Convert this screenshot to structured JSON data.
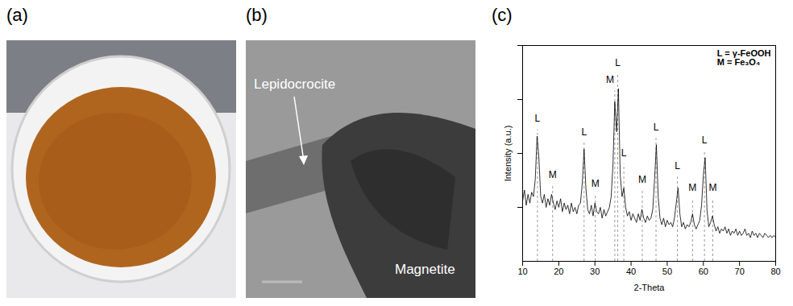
{
  "panels": [
    {
      "label": "(a)"
    },
    {
      "label": "(b)",
      "annotations": [
        "Lepidocrocite",
        "Magnetite"
      ]
    },
    {
      "label": "(c)"
    }
  ],
  "chart_data": {
    "type": "line",
    "x_label": "2-Theta",
    "y_label": "Intensity (a.u.)",
    "xlim": [
      10,
      80
    ],
    "xticks": [
      10,
      20,
      30,
      40,
      50,
      60,
      70,
      80
    ],
    "ylim": [
      0,
      100
    ],
    "yticks": [
      25,
      50,
      75,
      100
    ],
    "tick_labels": "x",
    "color": "#000000",
    "x": [
      10,
      10.5,
      11,
      11.5,
      12,
      12.5,
      13,
      13.5,
      14,
      14.5,
      15,
      15.5,
      16,
      16.5,
      17,
      17.5,
      18,
      18.5,
      19,
      19.5,
      20,
      20.5,
      21,
      21.5,
      22,
      22.5,
      23,
      23.5,
      24,
      24.5,
      25,
      25.5,
      26,
      26.5,
      27,
      27.5,
      28,
      28.5,
      29,
      29.5,
      30,
      30.5,
      31,
      31.5,
      32,
      32.5,
      33,
      33.5,
      34,
      34.5,
      35,
      35.5,
      36,
      36.5,
      37,
      37.5,
      38,
      38.5,
      39,
      39.5,
      40,
      40.5,
      41,
      41.5,
      42,
      42.5,
      43,
      43.5,
      44,
      44.5,
      45,
      45.5,
      46,
      46.5,
      47,
      47.5,
      48,
      48.5,
      49,
      49.5,
      50,
      50.5,
      51,
      51.5,
      52,
      52.5,
      53,
      53.5,
      54,
      54.5,
      55,
      55.5,
      56,
      56.5,
      57,
      57.5,
      58,
      58.5,
      59,
      59.5,
      60,
      60.5,
      61,
      61.5,
      62,
      62.5,
      63,
      63.5,
      64,
      64.5,
      65,
      65.5,
      66,
      66.5,
      67,
      67.5,
      68,
      68.5,
      69,
      69.5,
      70,
      70.5,
      71,
      71.5,
      72,
      72.5,
      73,
      73.5,
      74,
      74.5,
      75,
      75.5,
      76,
      76.5,
      77,
      77.5,
      78,
      78.5,
      79,
      79.5,
      80
    ],
    "values": [
      28,
      33,
      26,
      31,
      27,
      32,
      30,
      38,
      58,
      48,
      30,
      27,
      31,
      25,
      29,
      26,
      31,
      27,
      24,
      28,
      25,
      29,
      23,
      27,
      24,
      26,
      22,
      27,
      23,
      25,
      22,
      26,
      27,
      36,
      52,
      34,
      24,
      22,
      26,
      21,
      27,
      23,
      22,
      25,
      20,
      24,
      21,
      23,
      25,
      30,
      45,
      74,
      60,
      80,
      40,
      30,
      34,
      25,
      21,
      23,
      19,
      22,
      20,
      18,
      22,
      19,
      24,
      20,
      18,
      21,
      19,
      20,
      24,
      38,
      54,
      30,
      20,
      17,
      20,
      16,
      19,
      17,
      18,
      16,
      20,
      27,
      34,
      22,
      16,
      18,
      15,
      17,
      16,
      18,
      22,
      17,
      15,
      17,
      19,
      26,
      40,
      48,
      24,
      16,
      18,
      21,
      17,
      14,
      16,
      13,
      15,
      14,
      16,
      13,
      15,
      12,
      14,
      13,
      15,
      12,
      14,
      12,
      13,
      15,
      12,
      13,
      11,
      14,
      12,
      13,
      11,
      13,
      12,
      11,
      13,
      12,
      11,
      12,
      11,
      12,
      11
    ],
    "annotations": [
      {
        "label": "L",
        "x": 14.1,
        "y": 66
      },
      {
        "label": "M",
        "x": 18.3,
        "y": 40
      },
      {
        "label": "L",
        "x": 27,
        "y": 60
      },
      {
        "label": "M",
        "x": 30.1,
        "y": 36
      },
      {
        "label": "M",
        "x": 35.5,
        "y": 84
      },
      {
        "label": "L",
        "x": 36.3,
        "y": 92
      },
      {
        "label": "L",
        "x": 38,
        "y": 50
      },
      {
        "label": "M",
        "x": 43.1,
        "y": 38
      },
      {
        "label": "L",
        "x": 46.9,
        "y": 62
      },
      {
        "label": "L",
        "x": 52.8,
        "y": 44
      },
      {
        "label": "M",
        "x": 57,
        "y": 34
      },
      {
        "label": "L",
        "x": 60.3,
        "y": 56
      },
      {
        "label": "M",
        "x": 62.6,
        "y": 34
      }
    ],
    "notes": [
      "L = γ-FeOOH",
      "M = Fe₃O₄"
    ]
  }
}
